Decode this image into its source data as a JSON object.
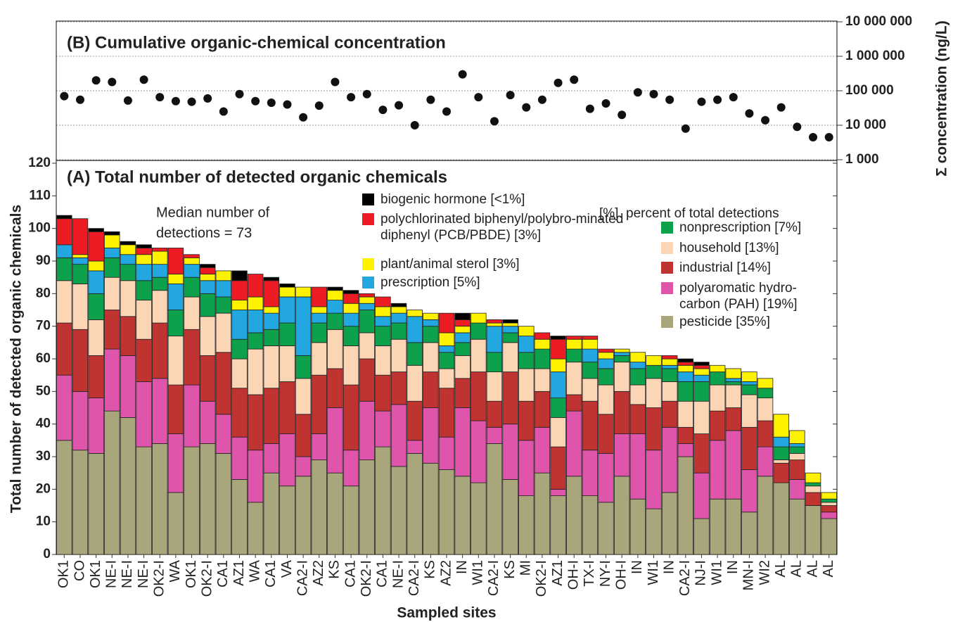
{
  "chart_data": [
    {
      "type": "scatter",
      "title": "(B) Cumulative organic-chemical concentration",
      "y_label": "Σ concentration (ng/L)",
      "color": "#111111",
      "log_scale": true,
      "grid": true,
      "ylim": [
        1000,
        10000000
      ],
      "yticks": [
        {
          "value": 1000,
          "label": "1 000"
        },
        {
          "value": 10000,
          "label": "10 000"
        },
        {
          "value": 100000,
          "label": "100 000"
        },
        {
          "value": 1000000,
          "label": "1 000 000"
        },
        {
          "value": 10000000,
          "label": "10 000 000"
        }
      ],
      "values": [
        70000,
        55000,
        200000,
        180000,
        52000,
        210000,
        65000,
        50000,
        48000,
        60000,
        25000,
        80000,
        50000,
        45000,
        40000,
        17000,
        37000,
        180000,
        65000,
        80000,
        28000,
        38000,
        10000,
        55000,
        25000,
        300000,
        65000,
        13000,
        75000,
        33000,
        55000,
        170000,
        210000,
        30000,
        43000,
        20000,
        90000,
        80000,
        55000,
        8000,
        48000,
        55000,
        65000,
        22000,
        14000,
        33000,
        9000,
        4500,
        4500
      ]
    },
    {
      "type": "bar",
      "stacked": true,
      "title": "(A) Total number of detected organic chemicals",
      "y_label": "Total number of detected organic chemicals",
      "x_label": "Sampled sites",
      "annotation": [
        "Median number of",
        "detections = 73"
      ],
      "note": "[%]. percent of total detections",
      "ylim": [
        0,
        120
      ],
      "yticks": [
        0,
        10,
        20,
        30,
        40,
        50,
        60,
        70,
        80,
        90,
        100,
        110,
        120
      ],
      "categories": [
        "OK1",
        "CO",
        "OK1",
        "NE-I",
        "NE-I",
        "NE-I",
        "OK2-I",
        "WA",
        "OK1",
        "OK2-I",
        "CA1",
        "AZ1",
        "WA",
        "CA1",
        "VA",
        "CA2-I",
        "AZ2",
        "KS",
        "CA1",
        "OK2-I",
        "CA1",
        "NE-I",
        "CA2-I",
        "KS",
        "AZ2",
        "IN",
        "WI1",
        "CA2-I",
        "KS",
        "MI",
        "OK2-I",
        "AZ1",
        "OH-I",
        "TX-I",
        "NY-I",
        "OH-I",
        "IN",
        "WI1",
        "IN",
        "CA2-I",
        "NJ-I",
        "WI1",
        "IN",
        "MN-I",
        "WI2",
        "AL",
        "AL",
        "AL",
        "AL"
      ],
      "series": [
        {
          "name": "pesticide [35%]",
          "color": "#aaa67b",
          "values": [
            35,
            32,
            31,
            44,
            42,
            33,
            34,
            19,
            33,
            34,
            31,
            23,
            16,
            25,
            21,
            24,
            29,
            25,
            21,
            29,
            33,
            27,
            31,
            28,
            26,
            24,
            22,
            34,
            23,
            18,
            25,
            18,
            24,
            18,
            16,
            24,
            17,
            14,
            19,
            30,
            11,
            17,
            17,
            13,
            24,
            22,
            17,
            15,
            11
          ]
        },
        {
          "name": "polyaromatic hydro-carbon (PAH) [19%]",
          "color": "#de55ab",
          "values": [
            20,
            18,
            17,
            19,
            19,
            20,
            20,
            18,
            19,
            13,
            12,
            13,
            16,
            9,
            16,
            6,
            8,
            20,
            11,
            18,
            11,
            19,
            4,
            17,
            10,
            21,
            19,
            5,
            17,
            17,
            14,
            2,
            20,
            14,
            15,
            13,
            20,
            18,
            20,
            4,
            14,
            18,
            21,
            13,
            9,
            0,
            6,
            0,
            2
          ]
        },
        {
          "name": "industrial [14%]",
          "color": "#bf3330",
          "values": [
            16,
            19,
            13,
            12,
            12,
            13,
            17,
            15,
            17,
            14,
            19,
            15,
            17,
            17,
            16,
            13,
            18,
            12,
            20,
            13,
            11,
            10,
            12,
            11,
            15,
            9,
            15,
            8,
            16,
            12,
            11,
            13,
            5,
            15,
            12,
            13,
            9,
            13,
            8,
            5,
            12,
            9,
            7,
            13,
            8,
            6,
            6,
            4,
            2
          ]
        },
        {
          "name": "household [13%]",
          "color": "#fcd5b5",
          "values": [
            13,
            14,
            11,
            10,
            11,
            12,
            10,
            15,
            10,
            12,
            12,
            9,
            14,
            13,
            11,
            11,
            10,
            12,
            12,
            8,
            9,
            10,
            11,
            9,
            6,
            7,
            10,
            9,
            9,
            10,
            7,
            9,
            10,
            7,
            9,
            9,
            6,
            9,
            6,
            8,
            10,
            8,
            7,
            10,
            7,
            1,
            2,
            2,
            1
          ]
        },
        {
          "name": "nonprescription [7%]",
          "color": "#0da14b",
          "values": [
            7,
            6,
            8,
            6,
            5,
            6,
            4,
            8,
            6,
            7,
            5,
            6,
            5,
            5,
            7,
            7,
            6,
            5,
            6,
            7,
            6,
            5,
            7,
            5,
            5,
            4,
            5,
            6,
            3,
            5,
            6,
            6,
            4,
            5,
            5,
            2,
            5,
            4,
            4,
            6,
            6,
            4,
            1,
            3,
            3,
            4,
            2,
            1,
            1
          ]
        },
        {
          "name": "prescription [5%]",
          "color": "#22a7e0",
          "values": [
            4,
            2,
            7,
            3,
            3,
            5,
            4,
            8,
            4,
            4,
            5,
            9,
            7,
            5,
            8,
            18,
            3,
            4,
            4,
            2,
            3,
            3,
            8,
            2,
            2,
            3,
            0,
            8,
            2,
            5,
            0,
            8,
            0,
            4,
            3,
            1,
            2,
            0,
            1,
            3,
            2,
            0,
            1,
            1,
            0,
            3,
            1,
            0,
            0
          ]
        },
        {
          "name": "plant/animal sterol [3%]",
          "color": "#fff200",
          "values": [
            0,
            1,
            3,
            4,
            3,
            3,
            4,
            3,
            2,
            2,
            3,
            3,
            4,
            2,
            3,
            3,
            2,
            3,
            3,
            2,
            3,
            2,
            2,
            2,
            4,
            2,
            3,
            1,
            1,
            3,
            3,
            4,
            3,
            3,
            2,
            1,
            3,
            3,
            2,
            2,
            2,
            2,
            3,
            3,
            3,
            7,
            4,
            3,
            2
          ]
        },
        {
          "name": "polychlorinated biphenyl/polybro-minated diphenyl (PCB/PBDE) [3%]",
          "color": "#ed1c24",
          "values": [
            8,
            11,
            9,
            0,
            0,
            2,
            1,
            8,
            1,
            2,
            0,
            6,
            7,
            8,
            0,
            0,
            6,
            0,
            3,
            1,
            3,
            0,
            0,
            0,
            6,
            2,
            0,
            1,
            0,
            0,
            2,
            6,
            1,
            1,
            1,
            0,
            0,
            0,
            1,
            1,
            1,
            0,
            0,
            0,
            0,
            0,
            0,
            0,
            0
          ]
        },
        {
          "name": "biogenic hormone [<1%]",
          "color": "#000000",
          "values": [
            1,
            0,
            1,
            1,
            1,
            1,
            0,
            0,
            0,
            1,
            0,
            3,
            0,
            1,
            1,
            0,
            0,
            1,
            1,
            0,
            0,
            1,
            0,
            0,
            0,
            2,
            0,
            0,
            1,
            0,
            0,
            1,
            0,
            0,
            0,
            0,
            0,
            0,
            0,
            1,
            1,
            0,
            0,
            0,
            0,
            0,
            0,
            0,
            0
          ]
        }
      ]
    }
  ]
}
